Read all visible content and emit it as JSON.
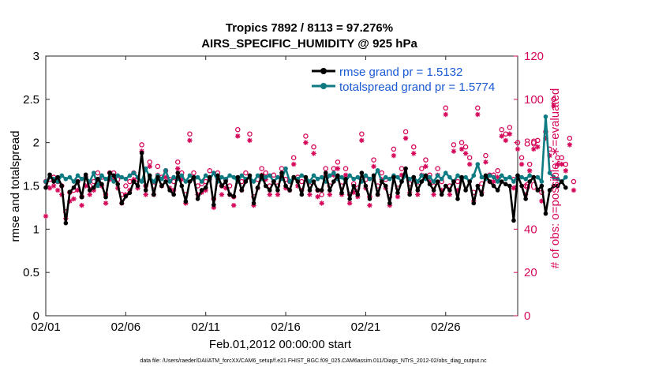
{
  "chart_data": {
    "type": "line",
    "title_line1": "Tropics 7892 / 8113 = 97.276%",
    "title_line2": "AIRS_SPECIFIC_HUMIDITY @ 925 hPa",
    "xlabel": "Feb.01,2012 00:00:00 start",
    "ylabel_left": "rmse and totalspread",
    "ylabel_right": "# of obs: o=possible; ∗=evaluated",
    "footnote": "data file: /Users/raeder/DAI/ATM_forcXX/CAM6_setup/f.e21.FHIST_BGC.f09_025.CAM6assim.011/Diags_NTrS_2012-02/obs_diag_output.nc",
    "xlim": [
      0,
      29.5
    ],
    "ylim_left": [
      0,
      3
    ],
    "ylim_right": [
      0,
      120
    ],
    "x_tick_labels": [
      "02/01",
      "02/06",
      "02/11",
      "02/16",
      "02/21",
      "02/26"
    ],
    "x_tick_values": [
      0,
      5,
      10,
      15,
      20,
      25
    ],
    "y_left_tick_labels": [
      "0",
      "0.5",
      "1",
      "1.5",
      "2",
      "2.5",
      "3"
    ],
    "y_left_tick_values": [
      0,
      0.5,
      1,
      1.5,
      2,
      2.5,
      3
    ],
    "y_right_tick_labels": [
      "0",
      "20",
      "40",
      "60",
      "80",
      "100",
      "120"
    ],
    "y_right_tick_values": [
      0,
      20,
      40,
      60,
      80,
      100,
      120
    ],
    "legend": {
      "placement": "top-right",
      "entries": [
        "rmse grand pr = 1.5132",
        "totalspread grand pr = 1.5774"
      ]
    },
    "colors": {
      "rmse": "#000000",
      "totalspread": "#0e7b82",
      "obs": "#d6075a",
      "legend_text": "#1a5ad4"
    },
    "time_step_days": 0.25,
    "series": [
      {
        "name": "rmse",
        "values": [
          1.48,
          1.63,
          1.55,
          1.6,
          1.5,
          1.07,
          1.43,
          1.48,
          1.55,
          1.37,
          1.63,
          1.45,
          1.48,
          1.58,
          1.52,
          1.37,
          1.65,
          1.62,
          1.52,
          1.3,
          1.38,
          1.42,
          1.55,
          1.5,
          1.88,
          1.45,
          1.62,
          1.4,
          1.6,
          1.5,
          1.55,
          1.45,
          1.4,
          1.65,
          1.5,
          1.32,
          1.55,
          1.6,
          1.35,
          1.45,
          1.48,
          1.6,
          1.28,
          1.62,
          1.5,
          1.55,
          1.4,
          1.38,
          1.6,
          1.45,
          1.55,
          1.62,
          1.3,
          1.48,
          1.62,
          1.5,
          1.45,
          1.55,
          1.45,
          1.65,
          1.5,
          1.45,
          1.6,
          1.55,
          1.4,
          1.6,
          1.45,
          1.55,
          1.45,
          1.45,
          1.65,
          1.45,
          1.55,
          1.62,
          1.42,
          1.58,
          1.35,
          1.5,
          1.4,
          1.65,
          1.5,
          1.35,
          1.62,
          1.4,
          1.55,
          1.5,
          1.3,
          1.6,
          1.42,
          1.55,
          1.7,
          1.4,
          1.6,
          1.45,
          1.55,
          1.62,
          1.52,
          1.45,
          1.55,
          1.4,
          1.5,
          1.45,
          1.55,
          1.35,
          1.6,
          1.45,
          1.55,
          1.3,
          1.5,
          1.4,
          1.62,
          1.55,
          1.5,
          1.45,
          1.55,
          1.52,
          1.5,
          1.1,
          1.62,
          1.5,
          1.35,
          1.55,
          1.6,
          1.45,
          1.5,
          1.18,
          1.45,
          1.5,
          1.5,
          1.55,
          1.48
        ]
      },
      {
        "name": "totalspread",
        "values": [
          1.55,
          1.6,
          1.58,
          1.55,
          1.62,
          1.58,
          1.6,
          1.55,
          1.62,
          1.58,
          1.6,
          1.55,
          1.65,
          1.5,
          1.62,
          1.58,
          1.6,
          1.55,
          1.62,
          1.6,
          1.58,
          1.62,
          1.65,
          1.6,
          1.55,
          1.7,
          1.6,
          1.55,
          1.62,
          1.58,
          1.68,
          1.55,
          1.6,
          1.58,
          1.62,
          1.55,
          1.62,
          1.58,
          1.6,
          1.55,
          1.62,
          1.58,
          1.65,
          1.55,
          1.6,
          1.58,
          1.62,
          1.6,
          1.55,
          1.62,
          1.58,
          1.6,
          1.55,
          1.62,
          1.58,
          1.6,
          1.62,
          1.55,
          1.6,
          1.58,
          1.7,
          1.55,
          1.6,
          1.58,
          1.62,
          1.6,
          1.55,
          1.62,
          1.58,
          1.6,
          1.55,
          1.62,
          1.65,
          1.58,
          1.6,
          1.55,
          1.62,
          1.58,
          1.6,
          1.55,
          1.62,
          1.58,
          1.6,
          1.68,
          1.55,
          1.6,
          1.58,
          1.62,
          1.6,
          1.55,
          1.62,
          1.58,
          1.6,
          1.55,
          1.62,
          1.58,
          1.6,
          1.55,
          1.62,
          1.58,
          1.65,
          1.6,
          1.55,
          1.62,
          1.58,
          1.6,
          1.55,
          1.62,
          1.75,
          1.6,
          1.58,
          1.62,
          1.6,
          1.55,
          1.62,
          1.58,
          1.6,
          1.55,
          1.62,
          1.6,
          1.58,
          1.62,
          1.6,
          1.6,
          1.55,
          2.3,
          1.65,
          1.6,
          1.58,
          1.55,
          1.6
        ]
      },
      {
        "name": "obs possible",
        "values": [
          62,
          63,
          64,
          62,
          60,
          48,
          57,
          58,
          62,
          55,
          64,
          60,
          62,
          66,
          64,
          56,
          66,
          66,
          63,
          56,
          60,
          62,
          66,
          63,
          79,
          60,
          71,
          60,
          69,
          64,
          67,
          63,
          62,
          71,
          66,
          56,
          84,
          66,
          60,
          61,
          62,
          67,
          54,
          66,
          60,
          63,
          60,
          55,
          86,
          62,
          66,
          84,
          55,
          63,
          68,
          66,
          60,
          65,
          60,
          68,
          63,
          62,
          73,
          64,
          62,
          83,
          60,
          78,
          58,
          56,
          68,
          60,
          68,
          71,
          60,
          68,
          56,
          61,
          59,
          84,
          63,
          55,
          72,
          60,
          66,
          63,
          55,
          77,
          59,
          68,
          85,
          61,
          78,
          60,
          68,
          72,
          65,
          60,
          68,
          62,
          96,
          60,
          79,
          62,
          80,
          78,
          73,
          57,
          96,
          61,
          74,
          65,
          65,
          67,
          86,
          84,
          87,
          63,
          80,
          73,
          60,
          70,
          80,
          81,
          57,
          85,
          77,
          100,
          73,
          73,
          70,
          82,
          62
        ]
      },
      {
        "name": "obs evaluated",
        "values": [
          46,
          59,
          60,
          58,
          56,
          45,
          53,
          54,
          58,
          51,
          60,
          56,
          58,
          63,
          60,
          52,
          63,
          63,
          59,
          52,
          56,
          58,
          63,
          59,
          76,
          56,
          69,
          56,
          65,
          60,
          64,
          59,
          58,
          68,
          63,
          52,
          81,
          63,
          56,
          57,
          58,
          63,
          50,
          63,
          56,
          59,
          56,
          51,
          83,
          58,
          63,
          81,
          51,
          59,
          65,
          63,
          56,
          62,
          56,
          65,
          59,
          58,
          70,
          60,
          58,
          80,
          56,
          75,
          55,
          52,
          65,
          56,
          65,
          68,
          56,
          65,
          52,
          57,
          55,
          81,
          59,
          51,
          69,
          56,
          63,
          59,
          51,
          74,
          55,
          65,
          82,
          57,
          75,
          56,
          65,
          69,
          62,
          56,
          65,
          58,
          93,
          56,
          76,
          58,
          77,
          75,
          70,
          53,
          93,
          57,
          71,
          62,
          62,
          64,
          83,
          81,
          84,
          59,
          77,
          70,
          56,
          67,
          77,
          78,
          53,
          82,
          74,
          97,
          70,
          70,
          67,
          79,
          58
        ]
      }
    ]
  }
}
